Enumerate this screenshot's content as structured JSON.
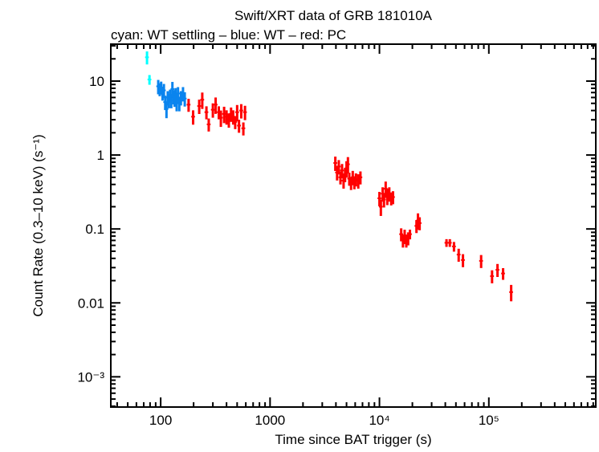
{
  "chart_data": {
    "type": "scatter",
    "title": "Swift/XRT data of GRB 181010A",
    "subtitle": "cyan: WT settling – blue: WT – red: PC",
    "xlabel": "Time since BAT trigger (s)",
    "ylabel": "Count Rate (0.3–10 keV) (s⁻¹)",
    "xscale": "log",
    "yscale": "log",
    "xlim": [
      35,
      950000
    ],
    "ylim": [
      0.00039,
      31.6
    ],
    "x_ticks": [
      {
        "v": 100,
        "label": "100"
      },
      {
        "v": 1000,
        "label": "1000"
      },
      {
        "v": 10000,
        "label": "10⁴"
      },
      {
        "v": 100000,
        "label": "10⁵"
      }
    ],
    "y_ticks": [
      {
        "v": 10,
        "label": "10"
      },
      {
        "v": 1,
        "label": "1"
      },
      {
        "v": 0.1,
        "label": "0.1"
      },
      {
        "v": 0.01,
        "label": "0.01"
      },
      {
        "v": 0.001,
        "label": "10⁻³"
      }
    ],
    "series": [
      {
        "name": "WT settling",
        "color": "#00ffff",
        "points": [
          [
            75,
            21,
            0.2
          ],
          [
            79,
            10.5,
            0.15
          ]
        ]
      },
      {
        "name": "WT",
        "color": "#0a84ee",
        "points": [
          [
            95,
            8.5,
            0.22
          ],
          [
            98,
            7.8,
            0.2
          ],
          [
            101,
            8.2,
            0.2
          ],
          [
            104,
            6.8,
            0.2
          ],
          [
            107,
            7.5,
            0.22
          ],
          [
            110,
            5.2,
            0.22
          ],
          [
            113,
            4.2,
            0.25
          ],
          [
            116,
            6,
            0.22
          ],
          [
            119,
            5.5,
            0.22
          ],
          [
            122,
            6.4,
            0.2
          ],
          [
            125,
            5.5,
            0.22
          ],
          [
            128,
            7.8,
            0.25
          ],
          [
            131,
            6.2,
            0.22
          ],
          [
            134,
            5.6,
            0.2
          ],
          [
            137,
            6.6,
            0.22
          ],
          [
            140,
            5.2,
            0.25
          ],
          [
            144,
            6.8,
            0.22
          ],
          [
            148,
            5.0,
            0.22
          ],
          [
            153,
            6.0,
            0.22
          ],
          [
            160,
            6.8,
            0.22
          ],
          [
            166,
            5.8,
            0.22
          ]
        ]
      },
      {
        "name": "PC",
        "color": "#ff0000",
        "points": [
          [
            180,
            4.8,
            0.2
          ],
          [
            198,
            3.3,
            0.22
          ],
          [
            225,
            4.6,
            0.22
          ],
          [
            240,
            5.6,
            0.25
          ],
          [
            262,
            3.8,
            0.2
          ],
          [
            275,
            2.6,
            0.2
          ],
          [
            300,
            4.1,
            0.22
          ],
          [
            318,
            4.8,
            0.25
          ],
          [
            340,
            3.8,
            0.2
          ],
          [
            355,
            3.2,
            0.25
          ],
          [
            380,
            3.6,
            0.25
          ],
          [
            400,
            3.3,
            0.22
          ],
          [
            420,
            3.0,
            0.22
          ],
          [
            440,
            3.6,
            0.22
          ],
          [
            460,
            3.3,
            0.22
          ],
          [
            480,
            2.8,
            0.2
          ],
          [
            500,
            3.8,
            0.25
          ],
          [
            520,
            2.5,
            0.2
          ],
          [
            545,
            4.0,
            0.22
          ],
          [
            570,
            2.3,
            0.2
          ],
          [
            590,
            3.8,
            0.22
          ],
          [
            3950,
            0.78,
            0.22
          ],
          [
            4100,
            0.58,
            0.22
          ],
          [
            4250,
            0.7,
            0.22
          ],
          [
            4400,
            0.5,
            0.2
          ],
          [
            4550,
            0.62,
            0.22
          ],
          [
            4700,
            0.45,
            0.22
          ],
          [
            4850,
            0.55,
            0.22
          ],
          [
            5000,
            0.66,
            0.25
          ],
          [
            5150,
            0.75,
            0.25
          ],
          [
            5300,
            0.48,
            0.2
          ],
          [
            5500,
            0.42,
            0.2
          ],
          [
            5700,
            0.5,
            0.22
          ],
          [
            5900,
            0.43,
            0.2
          ],
          [
            6100,
            0.47,
            0.2
          ],
          [
            6400,
            0.45,
            0.22
          ],
          [
            6700,
            0.5,
            0.2
          ],
          [
            10000,
            0.26,
            0.22
          ],
          [
            10300,
            0.2,
            0.25
          ],
          [
            10700,
            0.3,
            0.22
          ],
          [
            11000,
            0.25,
            0.22
          ],
          [
            11400,
            0.35,
            0.25
          ],
          [
            11800,
            0.28,
            0.25
          ],
          [
            12300,
            0.3,
            0.22
          ],
          [
            12800,
            0.26,
            0.2
          ],
          [
            13300,
            0.27,
            0.2
          ],
          [
            15800,
            0.085,
            0.2
          ],
          [
            16400,
            0.07,
            0.2
          ],
          [
            17000,
            0.08,
            0.22
          ],
          [
            17600,
            0.07,
            0.2
          ],
          [
            18300,
            0.075,
            0.2
          ],
          [
            19000,
            0.085,
            0.15
          ],
          [
            21800,
            0.11,
            0.2
          ],
          [
            22500,
            0.13,
            0.25
          ],
          [
            23300,
            0.12,
            0.2
          ],
          [
            41000,
            0.065,
            0.12
          ],
          [
            44000,
            0.065,
            0.12
          ],
          [
            48000,
            0.058,
            0.15
          ],
          [
            53000,
            0.045,
            0.2
          ],
          [
            58000,
            0.038,
            0.2
          ],
          [
            85000,
            0.037,
            0.2
          ],
          [
            107000,
            0.023,
            0.2
          ],
          [
            120000,
            0.028,
            0.2
          ],
          [
            135000,
            0.025,
            0.18
          ],
          [
            160000,
            0.014,
            0.25
          ]
        ]
      }
    ]
  }
}
